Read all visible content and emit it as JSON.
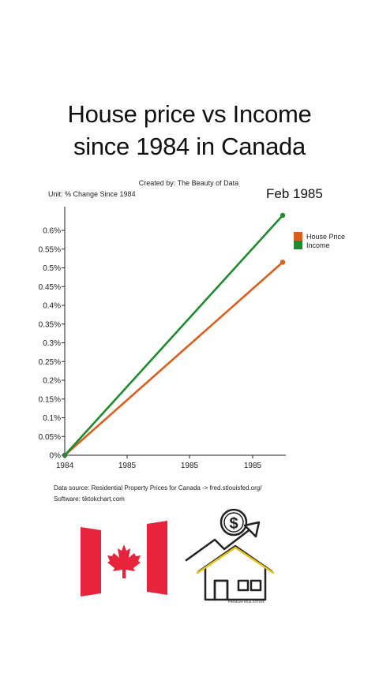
{
  "header": {
    "title_line1": "House price vs Income",
    "title_line2": "since 1984 in Canada",
    "credit": "Created by: The Beauty of Data",
    "unit": "Unit: % Change Since 1984",
    "current_date": "Feb 1985"
  },
  "chart_data": {
    "type": "line",
    "x": [
      "1984",
      "Feb 1985"
    ],
    "x_tick_labels": [
      "1984",
      "1985",
      "1985",
      "1985"
    ],
    "y_tick_labels": [
      "0%",
      "0.05%",
      "0.1%",
      "0.15%",
      "0.2%",
      "0.25%",
      "0.3%",
      "0.35%",
      "0.4%",
      "0.45%",
      "0.5%",
      "0.55%",
      "0.6%"
    ],
    "ylim": [
      0,
      0.64
    ],
    "series": [
      {
        "name": "House Price",
        "color": "#d95f1f",
        "values": [
          0,
          0.515
        ]
      },
      {
        "name": "Income",
        "color": "#1f8a2e",
        "values": [
          0,
          0.64
        ]
      }
    ],
    "legend": "top-right",
    "grid": false
  },
  "footer": {
    "source": "Data source: Residential Property Prices for Canada -> fred.stlouisfed.org/",
    "software": "Software: tiktokchart.com"
  },
  "house_sign_text": "PREMIUM REAL ESTATE",
  "colors": {
    "flag_red": "#e8243c",
    "house_price": "#d95f1f",
    "income": "#1f8a2e"
  }
}
